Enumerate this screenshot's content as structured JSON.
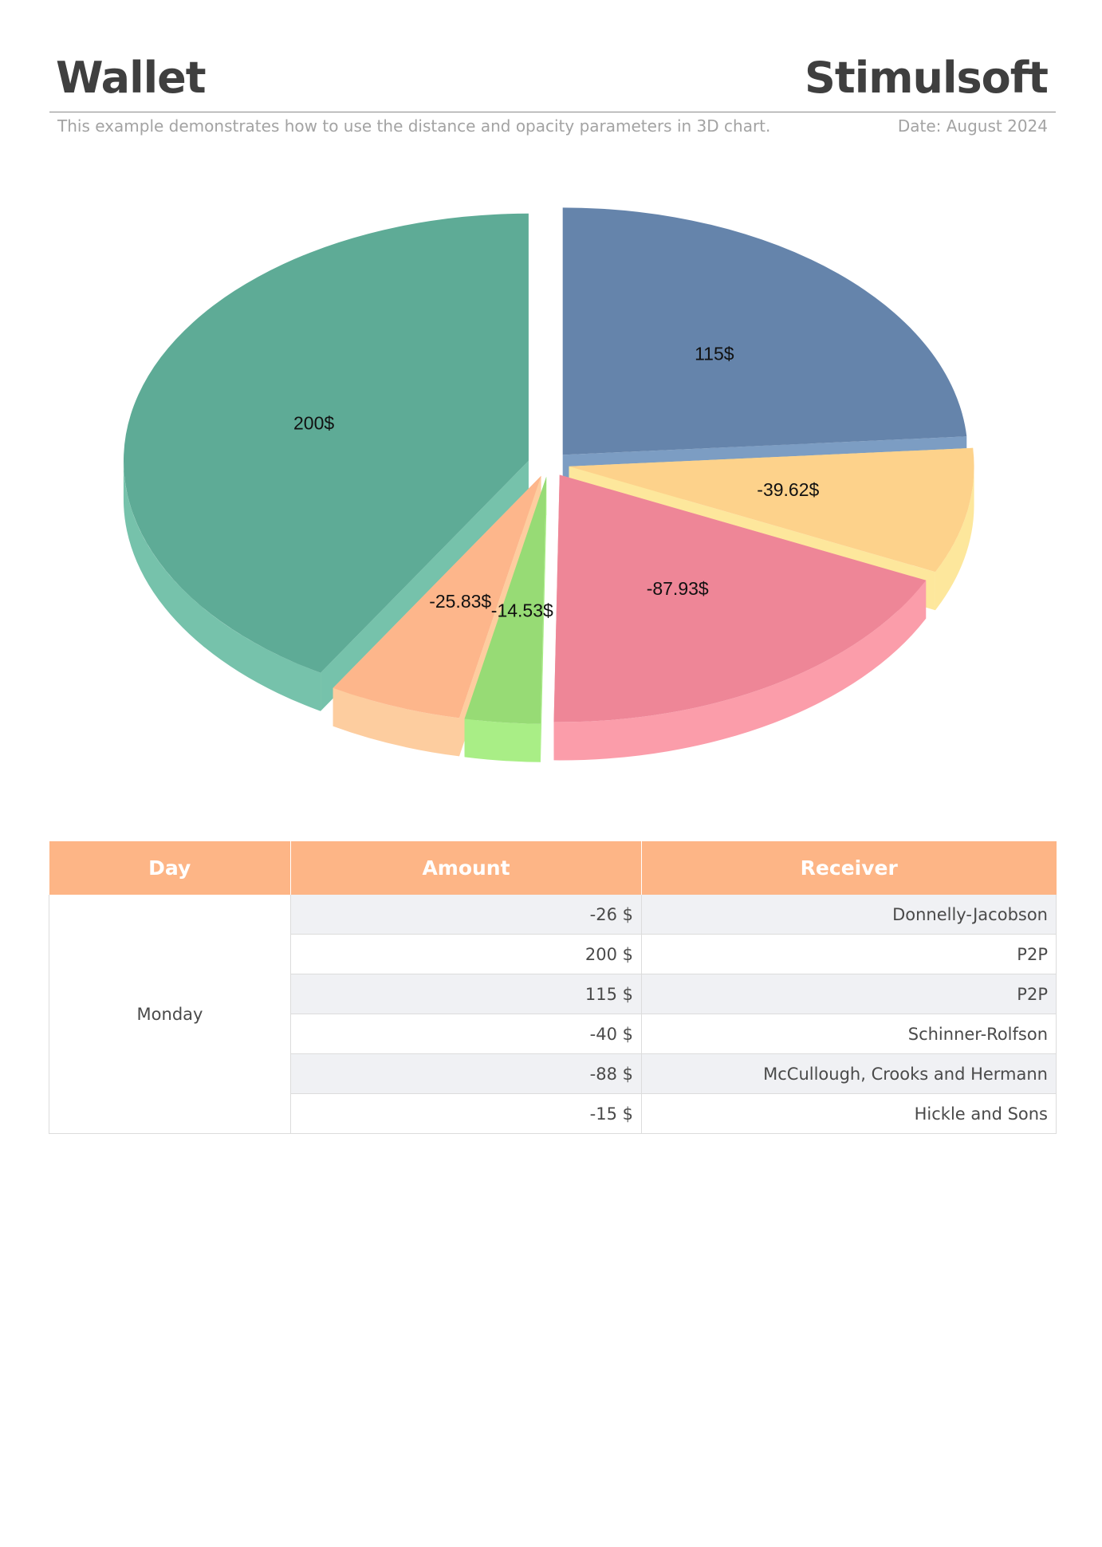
{
  "header": {
    "title": "Wallet",
    "brand": "Stimulsoft",
    "description": "This example demonstrates how to use the distance and opacity parameters in 3D chart.",
    "date": "Date: August 2024"
  },
  "colors": {
    "table_header_bg": "#fdb586",
    "table_alt_row_bg": "#f0f1f4"
  },
  "chart_data": {
    "type": "pie",
    "style": "3d-exploded",
    "categories": [
      "P2P",
      "Schinner-Rolfson",
      "McCullough, Crooks and Hermann",
      "Hickle and Sons",
      "Donnelly-Jacobson",
      "P2P"
    ],
    "values": [
      115,
      -39.62,
      -87.93,
      -14.53,
      -25.83,
      200
    ],
    "labels": [
      "115$",
      "-39.62$",
      "-87.93$",
      "-14.53$",
      "-25.83$",
      "200$"
    ],
    "colors": [
      "#6584ab",
      "#fdd28b",
      "#ee8697",
      "#97db75",
      "#fdb68b",
      "#5eab96"
    ],
    "side_colors": [
      "#7c9dc3",
      "#fde79c",
      "#fb9daa",
      "#a9ee86",
      "#fdcd9f",
      "#76c2ab"
    ],
    "legend": "none"
  },
  "table": {
    "headers": [
      "Day",
      "Amount",
      "Receiver"
    ],
    "day": "Monday",
    "rows": [
      {
        "amount": "-26 $",
        "receiver": "Donnelly-Jacobson"
      },
      {
        "amount": "200 $",
        "receiver": "P2P"
      },
      {
        "amount": "115 $",
        "receiver": "P2P"
      },
      {
        "amount": "-40 $",
        "receiver": "Schinner-Rolfson"
      },
      {
        "amount": "-88 $",
        "receiver": "McCullough, Crooks and Hermann"
      },
      {
        "amount": "-15 $",
        "receiver": "Hickle and Sons"
      }
    ]
  }
}
